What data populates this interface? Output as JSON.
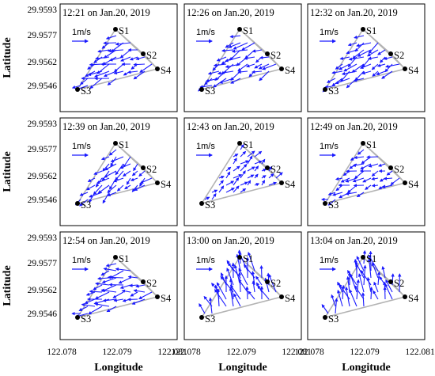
{
  "figure": {
    "ylabel": "Latitude",
    "xlabel": "Longitude",
    "row_yticks": [
      "29.9593",
      "29.9577",
      "29.9562",
      "29.9546"
    ],
    "col_xticks": [
      "122.078",
      "122.079",
      "122.081"
    ],
    "scale_label": "1m/s",
    "station_labels": [
      "S1",
      "S2",
      "S3",
      "S4"
    ],
    "arrow_color": "#1a1aff",
    "station_line_color": "#b3b3b3"
  },
  "chart_data": [
    {
      "type": "vector-field",
      "title": "12:21 on Jan.20, 2019",
      "speed": 0.62,
      "direction_deg": 200
    },
    {
      "type": "vector-field",
      "title": "12:26 on Jan.20, 2019",
      "speed": 0.62,
      "direction_deg": 205
    },
    {
      "type": "vector-field",
      "title": "12:32 on Jan.20, 2019",
      "speed": 0.58,
      "direction_deg": 210
    },
    {
      "type": "vector-field",
      "title": "12:39 on Jan.20, 2019",
      "speed": 0.5,
      "direction_deg": 220
    },
    {
      "type": "vector-field",
      "title": "12:43 on Jan.20, 2019",
      "speed": 0.25,
      "direction_deg": 40
    },
    {
      "type": "vector-field",
      "title": "12:49 on Jan.20, 2019",
      "speed": 0.4,
      "direction_deg": 200
    },
    {
      "type": "vector-field",
      "title": "12:54 on Jan.20, 2019",
      "speed": 0.62,
      "direction_deg": 190
    },
    {
      "type": "vector-field",
      "title": "13:00 on Jan.20, 2019",
      "speed": 0.9,
      "direction_deg": 110
    },
    {
      "type": "vector-field",
      "title": "13:04 on Jan.20, 2019",
      "speed": 0.85,
      "direction_deg": 105
    }
  ]
}
